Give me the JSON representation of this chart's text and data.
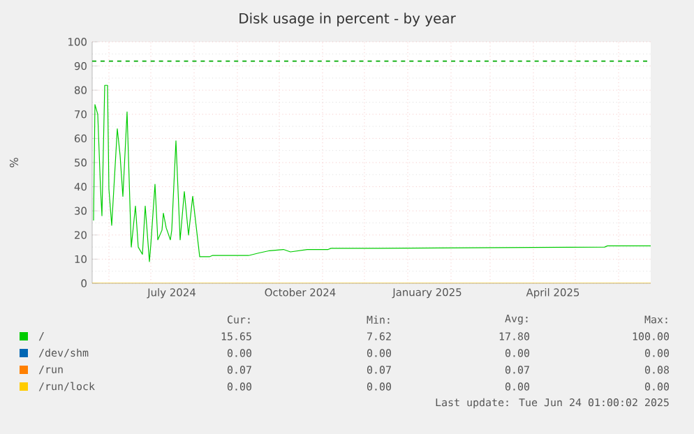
{
  "chart_data": {
    "type": "line",
    "title": "Disk usage in percent - by year",
    "ylabel": "%",
    "xlim": [
      "2024-05-20",
      "2025-06-24"
    ],
    "ylim": [
      0,
      100
    ],
    "xticks": [
      {
        "value": "2024-06-01",
        "label": null
      },
      {
        "value": "2024-07-01",
        "label": null
      },
      {
        "value": "2024-07-16",
        "label": "July 2024"
      },
      {
        "value": "2024-08-01",
        "label": null
      },
      {
        "value": "2024-09-01",
        "label": null
      },
      {
        "value": "2024-10-01",
        "label": null
      },
      {
        "value": "2024-10-16",
        "label": "October 2024"
      },
      {
        "value": "2024-11-01",
        "label": null
      },
      {
        "value": "2024-12-01",
        "label": null
      },
      {
        "value": "2025-01-01",
        "label": null
      },
      {
        "value": "2025-01-15",
        "label": "January 2025"
      },
      {
        "value": "2025-02-01",
        "label": null
      },
      {
        "value": "2025-03-01",
        "label": null
      },
      {
        "value": "2025-04-01",
        "label": null
      },
      {
        "value": "2025-04-15",
        "label": "April 2025"
      },
      {
        "value": "2025-05-01",
        "label": null
      },
      {
        "value": "2025-06-01",
        "label": null
      }
    ],
    "yticks": [
      0,
      10,
      20,
      30,
      40,
      50,
      60,
      70,
      80,
      90,
      100
    ],
    "grid": true,
    "legend": "bottom",
    "line_style": "solid",
    "marker": "none",
    "series": [
      {
        "name": "/",
        "color": "#00cc00",
        "x": [
          "2024-05-21",
          "2024-05-22",
          "2024-05-24",
          "2024-05-26",
          "2024-05-27",
          "2024-05-29",
          "2024-05-31",
          "2024-06-01",
          "2024-06-03",
          "2024-06-07",
          "2024-06-09",
          "2024-06-11",
          "2024-06-14",
          "2024-06-17",
          "2024-06-20",
          "2024-06-22",
          "2024-06-25",
          "2024-06-27",
          "2024-06-30",
          "2024-07-01",
          "2024-07-04",
          "2024-07-06",
          "2024-07-09",
          "2024-07-10",
          "2024-07-12",
          "2024-07-15",
          "2024-07-16",
          "2024-07-19",
          "2024-07-22",
          "2024-07-25",
          "2024-07-28",
          "2024-07-31",
          "2024-08-05",
          "2024-08-12",
          "2024-08-14",
          "2024-08-19",
          "2024-09-09",
          "2024-09-16",
          "2024-09-24",
          "2024-10-04",
          "2024-10-09",
          "2024-10-21",
          "2024-11-05",
          "2024-11-07",
          "2024-12-10",
          "2025-05-22",
          "2025-05-24",
          "2025-06-24"
        ],
        "values": [
          26,
          74,
          70,
          39,
          28,
          82,
          82,
          39,
          24,
          64,
          53,
          36,
          71,
          15,
          32,
          15,
          12,
          32,
          9,
          16,
          41,
          18,
          22,
          29,
          23,
          18,
          22,
          59,
          18,
          38,
          20,
          36,
          11,
          11,
          11.5,
          11.5,
          11.5,
          12.5,
          13.5,
          14,
          13,
          14,
          14,
          14.5,
          14.5,
          15,
          15.5,
          15.5
        ]
      },
      {
        "name": "/dev/shm",
        "color": "#0066b3",
        "values": [
          null,
          null
        ]
      },
      {
        "name": "/run",
        "color": "#ff8000",
        "values": [
          null,
          null
        ]
      },
      {
        "name": "/run/lock",
        "color": "#ffcc00",
        "x": [
          "2024-05-20",
          "2025-06-24"
        ],
        "values": [
          0,
          0
        ]
      }
    ],
    "ref_lines": [
      {
        "axis": "y",
        "value": 92,
        "color": "#00aa00",
        "line_style": "dashed"
      }
    ],
    "annotations": [
      "Cur:",
      "Min:",
      "Avg:",
      "Max:",
      "15.65",
      "7.62",
      "17.80",
      "100.00",
      "0.00",
      "0.00",
      "0.00",
      "0.00",
      "0.07",
      "0.07",
      "0.07",
      "0.08",
      "0.00",
      "0.00",
      "0.00",
      "0.00",
      "Last update: Tue Jun 24 01:00:02 2025"
    ]
  }
}
